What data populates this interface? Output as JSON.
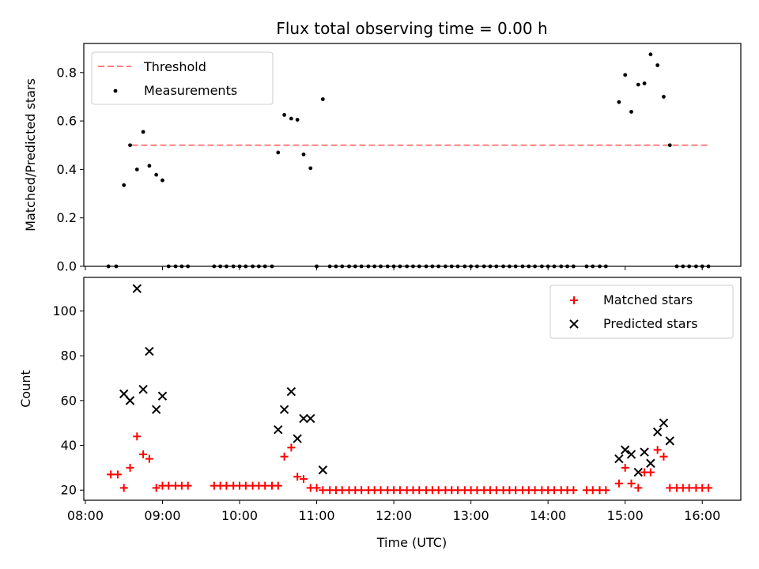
{
  "chart_data": [
    {
      "type": "scatter",
      "title": "Flux total observing time = 0.00 h",
      "ylabel": "Matched/Predicted stars",
      "ylim": [
        0,
        0.92
      ],
      "yticks": [
        0.0,
        0.2,
        0.4,
        0.6,
        0.8
      ],
      "ytick_labels": [
        "0.0",
        "0.2",
        "0.4",
        "0.6",
        "0.8"
      ],
      "legend_position": "upper-left",
      "threshold": {
        "name": "Threshold",
        "value": 0.5,
        "x_start": 8.6,
        "x_end": 16.1,
        "color": "#ff7f7f"
      },
      "series": [
        {
          "name": "Measurements",
          "color": "#000000",
          "x": [
            8.3,
            8.4,
            8.5,
            8.58,
            8.67,
            8.75,
            8.83,
            8.92,
            9.0,
            9.08,
            9.17,
            9.25,
            9.33,
            9.67,
            9.75,
            9.83,
            9.92,
            10.0,
            10.08,
            10.17,
            10.25,
            10.33,
            10.42,
            10.5,
            10.58,
            10.67,
            10.75,
            10.83,
            10.92,
            11.0,
            11.08,
            11.17,
            11.25,
            11.33,
            11.42,
            11.5,
            11.58,
            11.67,
            11.75,
            11.83,
            11.92,
            12.0,
            12.08,
            12.17,
            12.25,
            12.33,
            12.42,
            12.5,
            12.58,
            12.67,
            12.75,
            12.83,
            12.92,
            13.0,
            13.08,
            13.17,
            13.25,
            13.33,
            13.42,
            13.5,
            13.58,
            13.67,
            13.75,
            13.83,
            13.92,
            14.0,
            14.08,
            14.17,
            14.25,
            14.33,
            14.5,
            14.58,
            14.67,
            14.75,
            14.92,
            15.0,
            15.08,
            15.17,
            15.25,
            15.33,
            15.42,
            15.5,
            15.58,
            15.67,
            15.75,
            15.83,
            15.92,
            16.0,
            16.08
          ],
          "y": [
            0,
            0,
            0.335,
            0.5,
            0.4,
            0.555,
            0.415,
            0.378,
            0.355,
            0,
            0,
            0,
            0,
            0,
            0,
            0,
            0,
            0,
            0,
            0,
            0,
            0,
            0,
            0.47,
            0.625,
            0.61,
            0.605,
            0.462,
            0.405,
            0,
            0.69,
            0,
            0,
            0,
            0,
            0,
            0,
            0,
            0,
            0,
            0,
            0,
            0,
            0,
            0,
            0,
            0,
            0,
            0,
            0,
            0,
            0,
            0,
            0,
            0,
            0,
            0,
            0,
            0,
            0,
            0,
            0,
            0,
            0,
            0,
            0,
            0,
            0,
            0,
            0,
            0,
            0,
            0,
            0,
            0.678,
            0.79,
            0.638,
            0.75,
            0.755,
            0.875,
            0.83,
            0.7,
            0.5,
            0,
            0,
            0,
            0,
            0,
            0
          ]
        }
      ]
    },
    {
      "type": "scatter",
      "xlabel": "Time (UTC)",
      "ylabel": "Count",
      "xlim": [
        7.98,
        16.5
      ],
      "ylim": [
        15.5,
        115
      ],
      "xticks": [
        8,
        9,
        10,
        11,
        12,
        13,
        14,
        15,
        16
      ],
      "xtick_labels": [
        "08:00",
        "09:00",
        "10:00",
        "11:00",
        "12:00",
        "13:00",
        "14:00",
        "15:00",
        "16:00"
      ],
      "yticks": [
        20,
        40,
        60,
        80,
        100
      ],
      "ytick_labels": [
        "20",
        "40",
        "60",
        "80",
        "100"
      ],
      "legend_position": "upper-right",
      "series": [
        {
          "name": "Matched stars",
          "color": "#ff0000",
          "marker": "plus",
          "x": [
            8.33,
            8.42,
            8.5,
            8.58,
            8.67,
            8.75,
            8.83,
            8.92,
            9.0,
            9.08,
            9.17,
            9.25,
            9.33,
            9.67,
            9.75,
            9.83,
            9.92,
            10.0,
            10.08,
            10.17,
            10.25,
            10.33,
            10.42,
            10.5,
            10.58,
            10.67,
            10.75,
            10.83,
            10.92,
            11.0,
            11.08,
            11.17,
            11.25,
            11.33,
            11.42,
            11.5,
            11.58,
            11.67,
            11.75,
            11.83,
            11.92,
            12.0,
            12.08,
            12.17,
            12.25,
            12.33,
            12.42,
            12.5,
            12.58,
            12.67,
            12.75,
            12.83,
            12.92,
            13.0,
            13.08,
            13.17,
            13.25,
            13.33,
            13.42,
            13.5,
            13.58,
            13.67,
            13.75,
            13.83,
            13.92,
            14.0,
            14.08,
            14.17,
            14.25,
            14.33,
            14.5,
            14.58,
            14.67,
            14.75,
            14.92,
            15.0,
            15.08,
            15.17,
            15.25,
            15.33,
            15.42,
            15.5,
            15.58,
            15.67,
            15.75,
            15.83,
            15.92,
            16.0,
            16.08
          ],
          "y": [
            27,
            27,
            21,
            30,
            44,
            36,
            34,
            21,
            22,
            22,
            22,
            22,
            22,
            22,
            22,
            22,
            22,
            22,
            22,
            22,
            22,
            22,
            22,
            22,
            35,
            39,
            26,
            25,
            21,
            21,
            20,
            20,
            20,
            20,
            20,
            20,
            20,
            20,
            20,
            20,
            20,
            20,
            20,
            20,
            20,
            20,
            20,
            20,
            20,
            20,
            20,
            20,
            20,
            20,
            20,
            20,
            20,
            20,
            20,
            20,
            20,
            20,
            20,
            20,
            20,
            20,
            20,
            20,
            20,
            20,
            20,
            20,
            20,
            20,
            23,
            30,
            23,
            21,
            28,
            28,
            38,
            35,
            21,
            21,
            21,
            21,
            21,
            21,
            21
          ]
        },
        {
          "name": "Predicted stars",
          "color": "#000000",
          "marker": "x",
          "x": [
            8.5,
            8.58,
            8.67,
            8.75,
            8.83,
            8.92,
            9.0,
            10.5,
            10.58,
            10.67,
            10.75,
            10.83,
            10.92,
            11.08,
            14.92,
            15.0,
            15.08,
            15.17,
            15.25,
            15.33,
            15.42,
            15.5,
            15.58
          ],
          "y": [
            63,
            60,
            110,
            65,
            82,
            56,
            62,
            47,
            56,
            64,
            43,
            52,
            52,
            29,
            34,
            38,
            36,
            28,
            37,
            32,
            46,
            50,
            42
          ]
        }
      ]
    }
  ]
}
